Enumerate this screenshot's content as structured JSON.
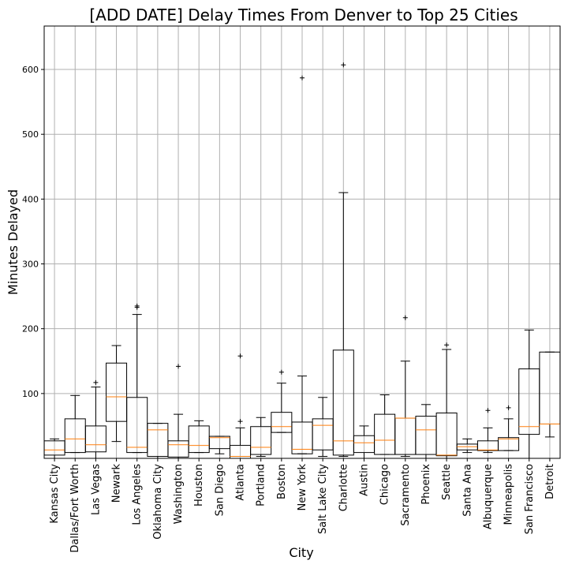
{
  "chart_data": {
    "type": "boxplot",
    "title": "[ADD DATE] Delay Times From Denver to Top 25 Cities",
    "xlabel": "City",
    "ylabel": "Minutes Delayed",
    "ylim": [
      0,
      667
    ],
    "yticks": [
      100,
      200,
      300,
      400,
      500,
      600
    ],
    "grid": true,
    "colors": {
      "box": "#000000",
      "median": "#ff7f0e",
      "grid": "#b0b0b0"
    },
    "boxes": [
      {
        "label": "Kansas City",
        "whislo": 0,
        "q1": 5,
        "med": 13,
        "q3": 27,
        "whishi": 30,
        "fliers": []
      },
      {
        "label": "Dallas/Fort Worth",
        "whislo": 9,
        "q1": 9,
        "med": 30,
        "q3": 61,
        "whishi": 97,
        "fliers": []
      },
      {
        "label": "Las Vegas",
        "whislo": 0,
        "q1": 10,
        "med": 21,
        "q3": 50,
        "whishi": 110,
        "fliers": [
          117
        ]
      },
      {
        "label": "Newark",
        "whislo": 26,
        "q1": 57,
        "med": 95,
        "q3": 147,
        "whishi": 174,
        "fliers": []
      },
      {
        "label": "Los Angeles",
        "whislo": 9,
        "q1": 9,
        "med": 17,
        "q3": 94,
        "whishi": 222,
        "fliers": [
          233,
          235
        ]
      },
      {
        "label": "Oklahoma City",
        "whislo": 0,
        "q1": 3,
        "med": 44,
        "q3": 54,
        "whishi": 54,
        "fliers": []
      },
      {
        "label": "Washington",
        "whislo": 0,
        "q1": 2,
        "med": 21,
        "q3": 27,
        "whishi": 68,
        "fliers": [
          142
        ]
      },
      {
        "label": "Houston",
        "whislo": 9,
        "q1": 9,
        "med": 20,
        "q3": 50,
        "whishi": 58,
        "fliers": []
      },
      {
        "label": "San Diego",
        "whislo": 7,
        "q1": 15,
        "med": 32,
        "q3": 34,
        "whishi": 34,
        "fliers": []
      },
      {
        "label": "Atlanta",
        "whislo": 0,
        "q1": 0,
        "med": 3,
        "q3": 20,
        "whishi": 47,
        "fliers": [
          57,
          158
        ]
      },
      {
        "label": "Portland",
        "whislo": 3,
        "q1": 6,
        "med": 17,
        "q3": 49,
        "whishi": 63,
        "fliers": []
      },
      {
        "label": "Boston",
        "whislo": 40,
        "q1": 40,
        "med": 49,
        "q3": 71,
        "whishi": 116,
        "fliers": [
          133
        ]
      },
      {
        "label": "New York",
        "whislo": 7,
        "q1": 7,
        "med": 14,
        "q3": 56,
        "whishi": 127,
        "fliers": [
          587
        ]
      },
      {
        "label": "Salt Lake City",
        "whislo": 3,
        "q1": 13,
        "med": 51,
        "q3": 61,
        "whishi": 94,
        "fliers": []
      },
      {
        "label": "Charlotte",
        "whislo": 3,
        "q1": 5,
        "med": 27,
        "q3": 167,
        "whishi": 410,
        "fliers": [
          607
        ]
      },
      {
        "label": "Austin",
        "whislo": 0,
        "q1": 9,
        "med": 24,
        "q3": 35,
        "whishi": 50,
        "fliers": []
      },
      {
        "label": "Chicago",
        "whislo": 6,
        "q1": 6,
        "med": 28,
        "q3": 68,
        "whishi": 98,
        "fliers": []
      },
      {
        "label": "Sacramento",
        "whislo": 3,
        "q1": 6,
        "med": 62,
        "q3": 62,
        "whishi": 150,
        "fliers": [
          217
        ]
      },
      {
        "label": "Phoenix",
        "whislo": 0,
        "q1": 6,
        "med": 44,
        "q3": 65,
        "whishi": 83,
        "fliers": []
      },
      {
        "label": "Seattle",
        "whislo": 0,
        "q1": 4,
        "med": 5,
        "q3": 70,
        "whishi": 168,
        "fliers": [
          175
        ]
      },
      {
        "label": "Santa Ana",
        "whislo": 9,
        "q1": 13,
        "med": 18,
        "q3": 22,
        "whishi": 30,
        "fliers": []
      },
      {
        "label": "Albuquerque",
        "whislo": 9,
        "q1": 12,
        "med": 13,
        "q3": 27,
        "whishi": 47,
        "fliers": [
          74
        ]
      },
      {
        "label": "Minneapolis",
        "whislo": 12,
        "q1": 12,
        "med": 30,
        "q3": 32,
        "whishi": 61,
        "fliers": [
          78
        ]
      },
      {
        "label": "San Francisco",
        "whislo": 0,
        "q1": 37,
        "med": 49,
        "q3": 138,
        "whishi": 198,
        "fliers": []
      },
      {
        "label": "Detroit",
        "whislo": 33,
        "q1": 53,
        "med": 53,
        "q3": 164,
        "whishi": 164,
        "fliers": []
      }
    ]
  }
}
